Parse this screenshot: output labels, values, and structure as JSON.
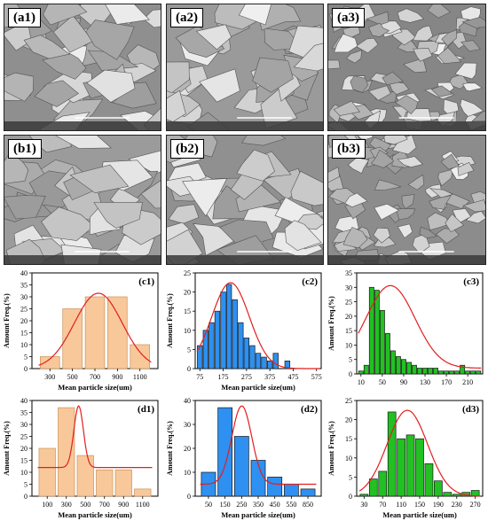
{
  "sem_images": [
    {
      "label": "(a1)",
      "tone": "#8f8f8f"
    },
    {
      "label": "(a2)",
      "tone": "#9a9a9a"
    },
    {
      "label": "(a3)",
      "tone": "#868686"
    },
    {
      "label": "(b1)",
      "tone": "#9b9b9b"
    },
    {
      "label": "(b2)",
      "tone": "#909090"
    },
    {
      "label": "(b3)",
      "tone": "#8c8c8c"
    }
  ],
  "colors": {
    "c_series": "#f8c89a",
    "c_edge": "#c8925a",
    "c2_series": "#2e90f0",
    "c3_series": "#22c022",
    "fit": "#e41e1e"
  },
  "chart_data": [
    {
      "label": "(c1)",
      "type": "bar",
      "xlabel": "Mean particle size(um)",
      "ylabel": "Amount Freq.(%)",
      "categories": [
        "300",
        "500",
        "700",
        "900",
        "1100"
      ],
      "values": [
        5,
        25,
        30,
        30,
        10
      ],
      "ylim": [
        0,
        40
      ],
      "yticks": [
        0,
        5,
        10,
        15,
        20,
        25,
        30,
        35,
        40
      ],
      "xticks": [
        "300",
        "500",
        "700",
        "900",
        "1100"
      ],
      "color": "#f8c89a"
    },
    {
      "label": "(c2)",
      "type": "bar",
      "xlabel": "Mean particle size(um)",
      "ylabel": "Amount Freq.(%)",
      "categories": [
        "75",
        "100",
        "125",
        "150",
        "175",
        "200",
        "225",
        "250",
        "275",
        "300",
        "325",
        "350",
        "375",
        "400",
        "425",
        "450",
        "475",
        "500",
        "525",
        "550",
        "575"
      ],
      "values": [
        6,
        10,
        12,
        15,
        20,
        22,
        18,
        12,
        8,
        6,
        4,
        3,
        2,
        4,
        0,
        2,
        0,
        0,
        0,
        0,
        0
      ],
      "ylim": [
        0,
        25
      ],
      "yticks": [
        0,
        5,
        10,
        15,
        20,
        25
      ],
      "xticks": [
        "75",
        "175",
        "275",
        "375",
        "475",
        "575"
      ],
      "color": "#2e90f0"
    },
    {
      "label": "(c3)",
      "type": "bar",
      "xlabel": "",
      "ylabel": "Amount Freq.(%)",
      "categories": [
        "10",
        "20",
        "30",
        "40",
        "50",
        "60",
        "70",
        "80",
        "90",
        "100",
        "110",
        "120",
        "130",
        "140",
        "150",
        "160",
        "170",
        "180",
        "190",
        "200",
        "210",
        "220",
        "230"
      ],
      "values": [
        1,
        3,
        30,
        29,
        22,
        14,
        8,
        6,
        5,
        4,
        3,
        2,
        2,
        2,
        2,
        1,
        1,
        1,
        1,
        3,
        1,
        1,
        1
      ],
      "ylim": [
        0,
        35
      ],
      "yticks": [
        0,
        5,
        10,
        15,
        20,
        25,
        30,
        35
      ],
      "xticks": [
        "10",
        "50",
        "90",
        "130",
        "170",
        "210"
      ],
      "color": "#22c022"
    },
    {
      "label": "(d1)",
      "type": "bar",
      "xlabel": "Mean particle size(um)",
      "ylabel": "Amount Freq.(%)",
      "categories": [
        "100",
        "300",
        "500",
        "700",
        "900",
        "1100"
      ],
      "values": [
        20,
        37,
        17,
        11,
        11,
        3
      ],
      "ylim": [
        0,
        40
      ],
      "yticks": [
        0,
        5,
        10,
        15,
        20,
        25,
        30,
        35,
        40
      ],
      "xticks": [
        "100",
        "300",
        "500",
        "700",
        "900",
        "1100"
      ],
      "color": "#f8c89a"
    },
    {
      "label": "(d2)",
      "type": "bar",
      "xlabel": "Mean particle size(um)",
      "ylabel": "Amount Freq.(%)",
      "categories": [
        "50",
        "150",
        "250",
        "350",
        "450",
        "550",
        "850"
      ],
      "values": [
        10,
        37,
        25,
        15,
        8,
        5,
        3
      ],
      "ylim": [
        0,
        40
      ],
      "yticks": [
        0,
        10,
        20,
        30,
        40
      ],
      "xticks": [
        "50",
        "150",
        "250",
        "350",
        "450",
        "550",
        "850"
      ],
      "color": "#2e90f0"
    },
    {
      "label": "(d3)",
      "type": "bar",
      "xlabel": "Mean particle size(um)",
      "ylabel": "Amount Freq.(%)",
      "categories": [
        "30",
        "50",
        "70",
        "90",
        "110",
        "130",
        "150",
        "170",
        "190",
        "210",
        "230",
        "250",
        "270"
      ],
      "values": [
        0.5,
        4.5,
        6.5,
        22,
        15,
        16,
        15,
        8.5,
        4,
        1,
        0.5,
        1,
        1.5
      ],
      "ylim": [
        0,
        25
      ],
      "yticks": [
        0,
        5,
        10,
        15,
        20,
        25
      ],
      "xticks": [
        "30",
        "70",
        "110",
        "150",
        "190",
        "230",
        "270"
      ],
      "color": "#22c022"
    }
  ]
}
